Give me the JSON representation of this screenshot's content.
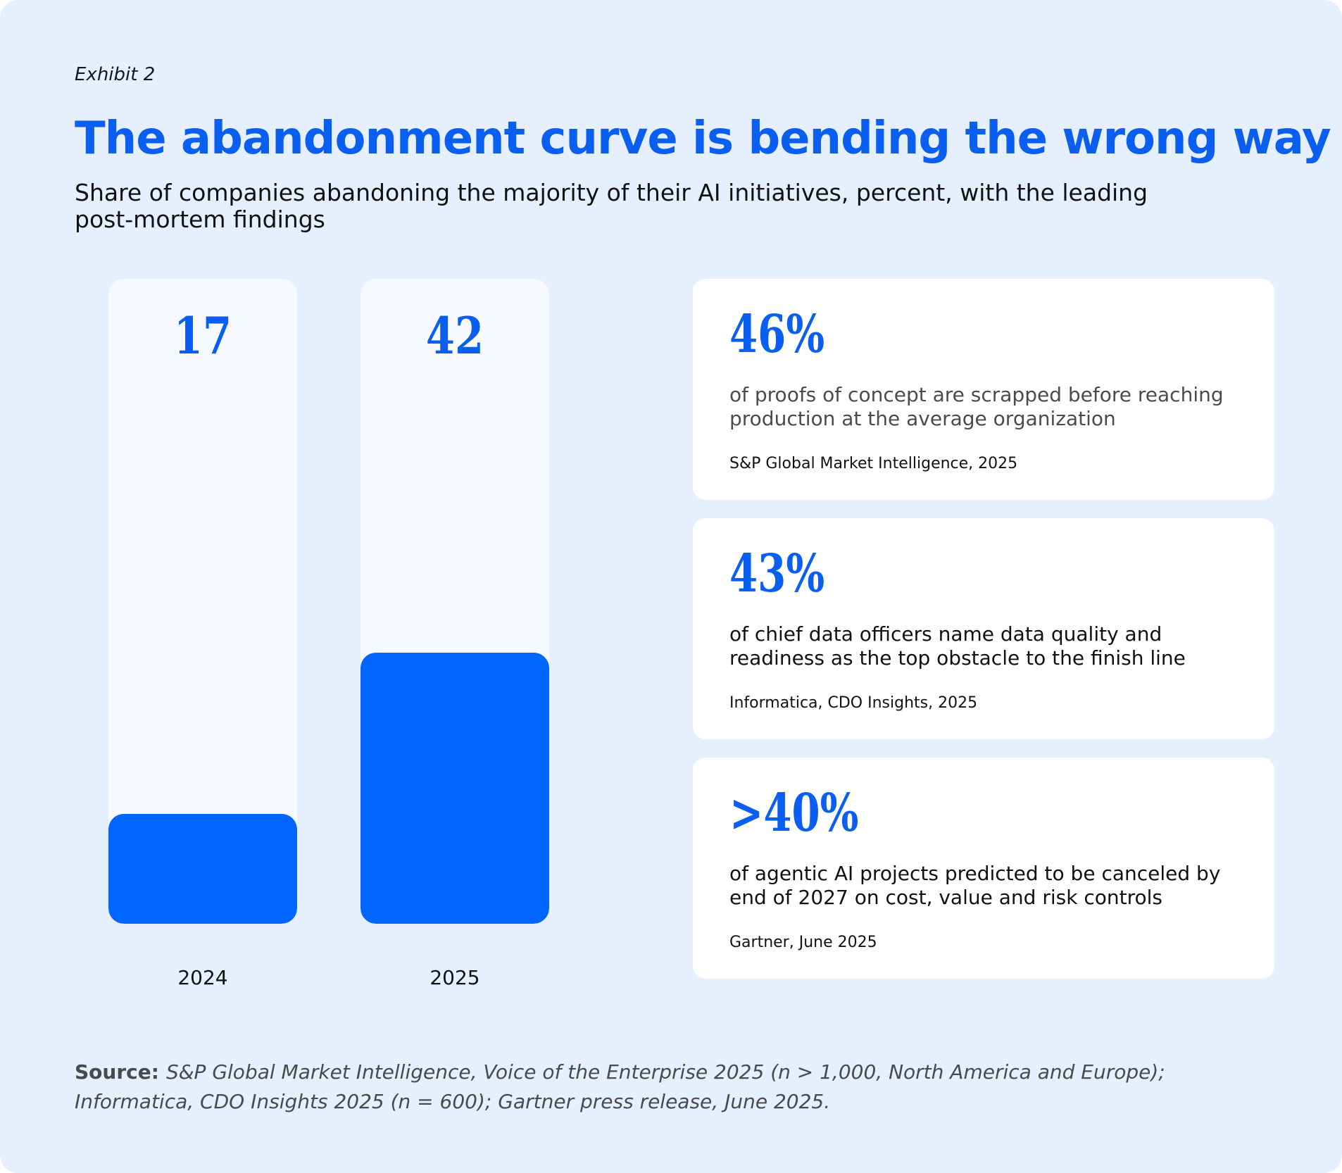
{
  "exhibit": "Exhibit 2",
  "title": "The abandonment curve is bending the wrong way",
  "subtitle": "Share of companies abandoning the majority of their AI initiatives, percent, with the leading post-mortem findings",
  "chart_data": {
    "type": "bar",
    "categories": [
      "2024",
      "2025"
    ],
    "values": [
      17,
      42
    ],
    "ylim": [
      0,
      100
    ],
    "grid": false,
    "colors": {
      "bar": "#0066ff",
      "track": "#f6f9ff",
      "value_label": "#0a5ff0"
    }
  },
  "cards": [
    {
      "stat": "46%",
      "description": "of proofs of concept are scrapped before reaching production at the average organization",
      "source": "S&P Global Market Intelligence, 2025"
    },
    {
      "stat": "43%",
      "description": "of chief data officers name data quality and readiness as the top obstacle to the finish line",
      "source": "Informatica, CDO Insights, 2025"
    },
    {
      "stat": ">40%",
      "description": "of agentic AI projects predicted to be canceled by end of 2027 on cost, value and risk controls",
      "source": "Gartner, June 2025"
    }
  ],
  "footer": {
    "label": "Source:",
    "text": "S&P Global Market Intelligence, Voice of the Enterprise 2025 (n > 1,000, North America and Europe); Informatica, CDO Insights 2025 (n = 600); Gartner press release, June 2025."
  },
  "colors": {
    "background": "#e5effe",
    "accent": "#0a5ff0",
    "card": "#ffffff"
  }
}
